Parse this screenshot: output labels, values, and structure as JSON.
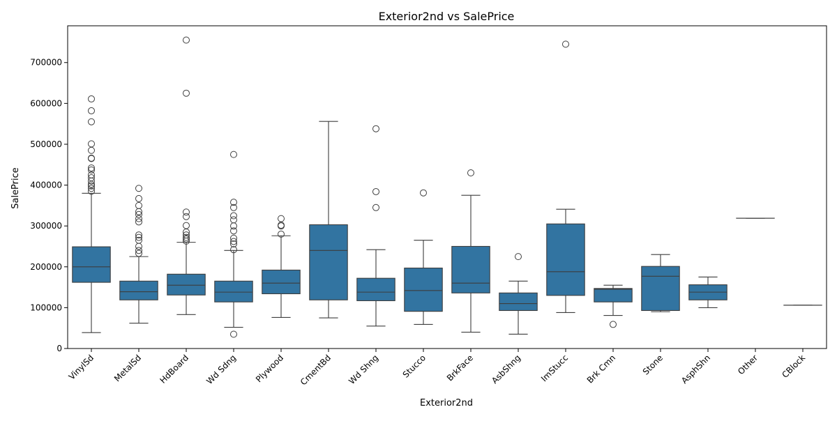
{
  "chart_data": {
    "type": "box",
    "title": "Exterior2nd vs SalePrice",
    "xlabel": "Exterior2nd",
    "ylabel": "SalePrice",
    "ylim": [
      0,
      790000
    ],
    "yticks": [
      0,
      100000,
      200000,
      300000,
      400000,
      500000,
      600000,
      700000
    ],
    "ytick_labels": [
      "0",
      "100000",
      "200000",
      "300000",
      "400000",
      "500000",
      "600000",
      "700000"
    ],
    "grid": false,
    "colors": {
      "box_fill": "#3274a1",
      "line": "#3d3d3d"
    },
    "categories": [
      "VinylSd",
      "MetalSd",
      "HdBoard",
      "Wd Sdng",
      "Plywood",
      "CmentBd",
      "Wd Shng",
      "Stucco",
      "BrkFace",
      "AsbShng",
      "ImStucc",
      "Brk Cmn",
      "Stone",
      "AsphShn",
      "Other",
      "CBlock"
    ],
    "boxes": [
      {
        "category": "VinylSd",
        "whislo": 39000,
        "q1": 162000,
        "med": 200000,
        "q3": 249000,
        "whishi": 380000,
        "fliers": [
          385000,
          392000,
          398000,
          402000,
          410000,
          418000,
          425000,
          437000,
          442000,
          465000,
          466000,
          485000,
          501000,
          555000,
          582000,
          611000
        ]
      },
      {
        "category": "MetalSd",
        "whislo": 62000,
        "q1": 119000,
        "med": 139000,
        "q3": 165000,
        "whishi": 225000,
        "fliers": [
          233000,
          240000,
          250000,
          265000,
          272000,
          278000,
          310000,
          318000,
          328000,
          335000,
          350000,
          367000,
          392000
        ]
      },
      {
        "category": "HdBoard",
        "whislo": 83000,
        "q1": 131000,
        "med": 155000,
        "q3": 182000,
        "whishi": 260000,
        "fliers": [
          263000,
          268000,
          272000,
          278000,
          285000,
          301000,
          323000,
          334000,
          625000,
          755000
        ]
      },
      {
        "category": "Wd Sdng",
        "whislo": 52000,
        "q1": 114000,
        "med": 138000,
        "q3": 165000,
        "whishi": 240000,
        "fliers": [
          35000,
          242000,
          256000,
          262000,
          270000,
          288000,
          300000,
          315000,
          325000,
          345000,
          358000,
          475000
        ]
      },
      {
        "category": "Plywood",
        "whislo": 76000,
        "q1": 134000,
        "med": 160000,
        "q3": 192000,
        "whishi": 276000,
        "fliers": [
          280000,
          300000,
          302000,
          318000
        ]
      },
      {
        "category": "CmentBd",
        "whislo": 75000,
        "q1": 119000,
        "med": 240000,
        "q3": 303000,
        "whishi": 556000,
        "fliers": []
      },
      {
        "category": "Wd Shng",
        "whislo": 55000,
        "q1": 117000,
        "med": 138000,
        "q3": 172000,
        "whishi": 242000,
        "fliers": [
          345000,
          384000,
          538000
        ]
      },
      {
        "category": "Stucco",
        "whislo": 59000,
        "q1": 91000,
        "med": 142000,
        "q3": 197000,
        "whishi": 265000,
        "fliers": [
          381000
        ]
      },
      {
        "category": "BrkFace",
        "whislo": 40000,
        "q1": 136000,
        "med": 160000,
        "q3": 250000,
        "whishi": 375000,
        "fliers": [
          430000
        ]
      },
      {
        "category": "AsbShng",
        "whislo": 35000,
        "q1": 93000,
        "med": 110000,
        "q3": 136000,
        "whishi": 165000,
        "fliers": [
          225000
        ]
      },
      {
        "category": "ImStucc",
        "whislo": 88000,
        "q1": 130000,
        "med": 188000,
        "q3": 305000,
        "whishi": 341000,
        "fliers": [
          745000
        ]
      },
      {
        "category": "Brk Cmn",
        "whislo": 81000,
        "q1": 114000,
        "med": 145000,
        "q3": 147000,
        "whishi": 155000,
        "fliers": [
          59000
        ]
      },
      {
        "category": "Stone",
        "whislo": 90000,
        "q1": 93000,
        "med": 177000,
        "q3": 201000,
        "whishi": 230000,
        "fliers": []
      },
      {
        "category": "AsphShn",
        "whislo": 100000,
        "q1": 119000,
        "med": 138000,
        "q3": 156000,
        "whishi": 175000,
        "fliers": []
      },
      {
        "category": "Other",
        "whislo": 319000,
        "q1": 319000,
        "med": 319000,
        "q3": 319000,
        "whishi": 319000,
        "fliers": []
      },
      {
        "category": "CBlock",
        "whislo": 106000,
        "q1": 106000,
        "med": 106000,
        "q3": 106000,
        "whishi": 106000,
        "fliers": []
      }
    ]
  }
}
